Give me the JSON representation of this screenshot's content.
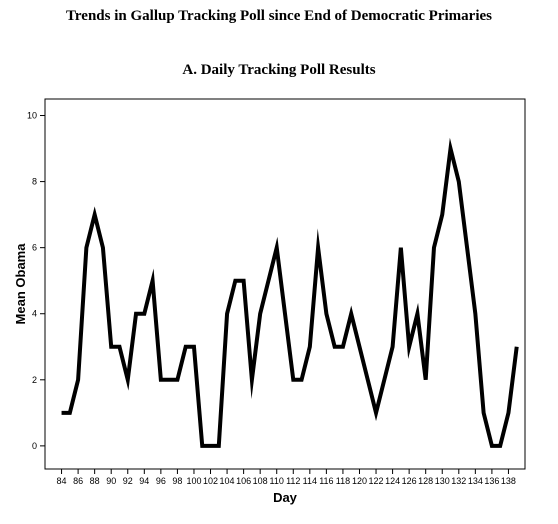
{
  "figure": {
    "title": "Trends in Gallup Tracking Poll since End of Democratic Primaries",
    "subtitle": "A. Daily Tracking Poll Results"
  },
  "chart_data": {
    "type": "line",
    "title": "Trends in Gallup Tracking Poll since End of Democratic Primaries",
    "subtitle": "A. Daily Tracking Poll Results",
    "xlabel": "Day",
    "ylabel": "Mean Obama",
    "xlim": [
      82,
      140
    ],
    "ylim": [
      -0.7,
      10.5
    ],
    "x_ticks": [
      84,
      86,
      88,
      90,
      92,
      94,
      96,
      98,
      100,
      102,
      104,
      106,
      108,
      110,
      112,
      114,
      116,
      118,
      120,
      122,
      124,
      126,
      128,
      130,
      132,
      134,
      136,
      138
    ],
    "y_ticks": [
      0,
      2,
      4,
      6,
      8,
      10
    ],
    "grid": false,
    "series": [
      {
        "color": "#000000",
        "x": [
          84,
          85,
          86,
          87,
          88,
          89,
          90,
          91,
          92,
          93,
          94,
          95,
          96,
          97,
          98,
          99,
          100,
          101,
          102,
          103,
          104,
          105,
          106,
          107,
          108,
          109,
          110,
          111,
          112,
          113,
          114,
          115,
          116,
          117,
          118,
          119,
          120,
          121,
          122,
          123,
          124,
          125,
          126,
          127,
          128,
          129,
          130,
          131,
          132,
          133,
          134,
          135,
          136,
          137,
          138,
          139
        ],
        "y": [
          1,
          1,
          2,
          6,
          7,
          6,
          3,
          3,
          2,
          4,
          4,
          5,
          2,
          2,
          2,
          3,
          3,
          0,
          0,
          0,
          4,
          5,
          5,
          2,
          4,
          5,
          6,
          4,
          2,
          2,
          3,
          6,
          4,
          3,
          3,
          4,
          3,
          2,
          1,
          2,
          3,
          6,
          3,
          4,
          2,
          6,
          7,
          9,
          8,
          6,
          4,
          1,
          0,
          0,
          1,
          3
        ]
      }
    ]
  }
}
